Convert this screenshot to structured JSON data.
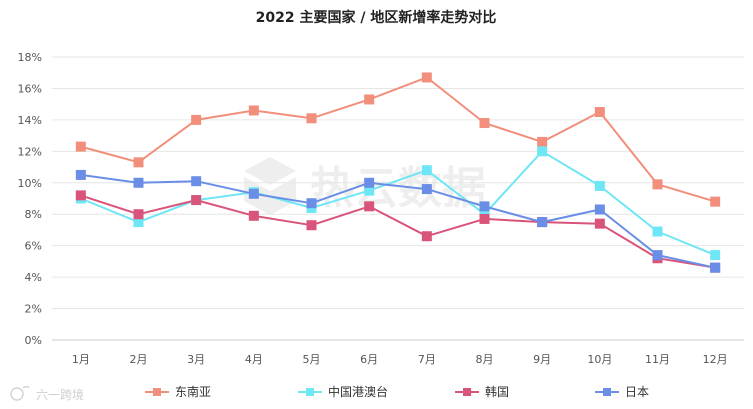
{
  "chart_data": {
    "type": "line",
    "title": "2022 主要国家 / 地区新增率走势对比",
    "categories": [
      "1月",
      "2月",
      "3月",
      "4月",
      "5月",
      "6月",
      "7月",
      "8月",
      "9月",
      "10月",
      "11月",
      "12月"
    ],
    "y_ticks": [
      "0%",
      "2%",
      "4%",
      "6%",
      "8%",
      "10%",
      "12%",
      "14%",
      "16%",
      "18%"
    ],
    "ylim": [
      0,
      18
    ],
    "grid": "horizontal",
    "legend_position": "bottom",
    "series": [
      {
        "name": "东南亚",
        "color": "#F28E7C",
        "values": [
          12.3,
          11.3,
          14.0,
          14.6,
          14.1,
          15.3,
          16.7,
          13.8,
          12.6,
          14.5,
          9.9,
          8.8
        ]
      },
      {
        "name": "中国港澳台",
        "color": "#6EE6F5",
        "values": [
          9.0,
          7.5,
          8.9,
          9.4,
          8.4,
          9.5,
          10.8,
          8.0,
          12.0,
          9.8,
          6.9,
          5.4
        ]
      },
      {
        "name": "韩国",
        "color": "#D9547A",
        "values": [
          9.2,
          8.0,
          8.9,
          7.9,
          7.3,
          8.5,
          6.6,
          7.7,
          7.5,
          7.4,
          5.2,
          4.6
        ]
      },
      {
        "name": "日本",
        "color": "#6A8EE6",
        "values": [
          10.5,
          10.0,
          10.1,
          9.3,
          8.7,
          10.0,
          9.6,
          8.5,
          7.5,
          8.3,
          5.4,
          4.6
        ]
      }
    ]
  },
  "watermark": "热云数据",
  "source_logo": "六一跨境"
}
